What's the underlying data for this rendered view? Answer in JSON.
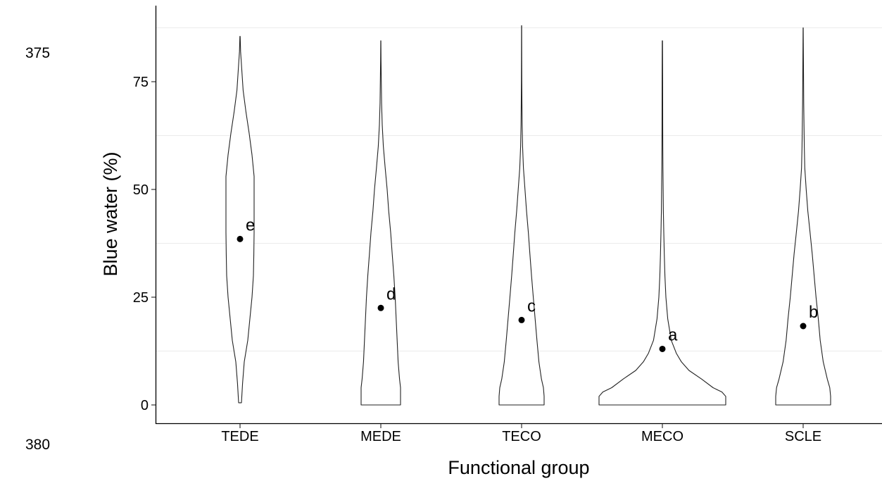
{
  "line_numbers": [
    "375",
    "380"
  ],
  "chart_data": {
    "type": "violin",
    "title": "",
    "xlabel": "Functional group",
    "ylabel": "Blue water (%)",
    "ylim": [
      -4.5,
      92
    ],
    "yticks": [
      0,
      25,
      50,
      75
    ],
    "grid": "horizontal minor lines only",
    "categories": [
      "TEDE",
      "MEDE",
      "TECO",
      "MECO",
      "SCLE"
    ],
    "means": [
      38.5,
      22.5,
      19.7,
      13.0,
      18.3
    ],
    "letters": [
      "e",
      "d",
      "c",
      "a",
      "b"
    ],
    "violin_range": [
      [
        0.5,
        85.5
      ],
      [
        0,
        84.5
      ],
      [
        0,
        88
      ],
      [
        0,
        84.5
      ],
      [
        0,
        87.5
      ]
    ],
    "violin_profiles": [
      [
        [
          0.5,
          0.1
        ],
        [
          5,
          0.18
        ],
        [
          10,
          0.3
        ],
        [
          15,
          0.55
        ],
        [
          20,
          0.7
        ],
        [
          25,
          0.85
        ],
        [
          30,
          0.95
        ],
        [
          35,
          0.98
        ],
        [
          40,
          1.0
        ],
        [
          45,
          1.0
        ],
        [
          50,
          1.0
        ],
        [
          53,
          1.0
        ],
        [
          58,
          0.85
        ],
        [
          63,
          0.65
        ],
        [
          68,
          0.42
        ],
        [
          73,
          0.22
        ],
        [
          78,
          0.12
        ],
        [
          82,
          0.04
        ],
        [
          85.5,
          0.01
        ]
      ],
      [
        [
          0,
          1.0
        ],
        [
          2,
          1.0
        ],
        [
          4,
          1.0
        ],
        [
          6,
          0.95
        ],
        [
          10,
          0.88
        ],
        [
          15,
          0.83
        ],
        [
          20,
          0.78
        ],
        [
          25,
          0.73
        ],
        [
          30,
          0.66
        ],
        [
          35,
          0.58
        ],
        [
          40,
          0.5
        ],
        [
          45,
          0.4
        ],
        [
          50,
          0.32
        ],
        [
          55,
          0.22
        ],
        [
          60,
          0.13
        ],
        [
          65,
          0.07
        ],
        [
          70,
          0.04
        ],
        [
          75,
          0.025
        ],
        [
          80,
          0.01
        ],
        [
          84.5,
          0.005
        ]
      ],
      [
        [
          0,
          1.0
        ],
        [
          2,
          1.0
        ],
        [
          4,
          0.97
        ],
        [
          6,
          0.88
        ],
        [
          10,
          0.77
        ],
        [
          15,
          0.68
        ],
        [
          20,
          0.6
        ],
        [
          25,
          0.52
        ],
        [
          30,
          0.44
        ],
        [
          35,
          0.37
        ],
        [
          40,
          0.3
        ],
        [
          45,
          0.22
        ],
        [
          50,
          0.15
        ],
        [
          55,
          0.08
        ],
        [
          60,
          0.045
        ],
        [
          65,
          0.025
        ],
        [
          70,
          0.015
        ],
        [
          75,
          0.01
        ],
        [
          80,
          0.006
        ],
        [
          88,
          0.002
        ]
      ],
      [
        [
          0,
          1.0
        ],
        [
          1,
          1.0
        ],
        [
          2,
          1.0
        ],
        [
          3,
          0.94
        ],
        [
          4,
          0.8
        ],
        [
          6,
          0.62
        ],
        [
          8,
          0.42
        ],
        [
          10,
          0.3
        ],
        [
          12,
          0.22
        ],
        [
          15,
          0.14
        ],
        [
          20,
          0.085
        ],
        [
          25,
          0.055
        ],
        [
          30,
          0.04
        ],
        [
          35,
          0.03
        ],
        [
          40,
          0.022
        ],
        [
          45,
          0.016
        ],
        [
          50,
          0.012
        ],
        [
          55,
          0.009
        ],
        [
          60,
          0.007
        ],
        [
          65,
          0.005
        ],
        [
          75,
          0.004
        ],
        [
          84.5,
          0.002
        ]
      ],
      [
        [
          0,
          1.0
        ],
        [
          2,
          1.0
        ],
        [
          4,
          0.97
        ],
        [
          6,
          0.88
        ],
        [
          10,
          0.73
        ],
        [
          15,
          0.62
        ],
        [
          20,
          0.55
        ],
        [
          25,
          0.47
        ],
        [
          30,
          0.4
        ],
        [
          35,
          0.33
        ],
        [
          40,
          0.25
        ],
        [
          45,
          0.17
        ],
        [
          50,
          0.11
        ],
        [
          55,
          0.06
        ],
        [
          60,
          0.04
        ],
        [
          65,
          0.03
        ],
        [
          70,
          0.02
        ],
        [
          75,
          0.015
        ],
        [
          80,
          0.01
        ],
        [
          87.5,
          0.003
        ]
      ]
    ],
    "violin_max_halfwidths": [
      20,
      28,
      32,
      90,
      39
    ]
  }
}
